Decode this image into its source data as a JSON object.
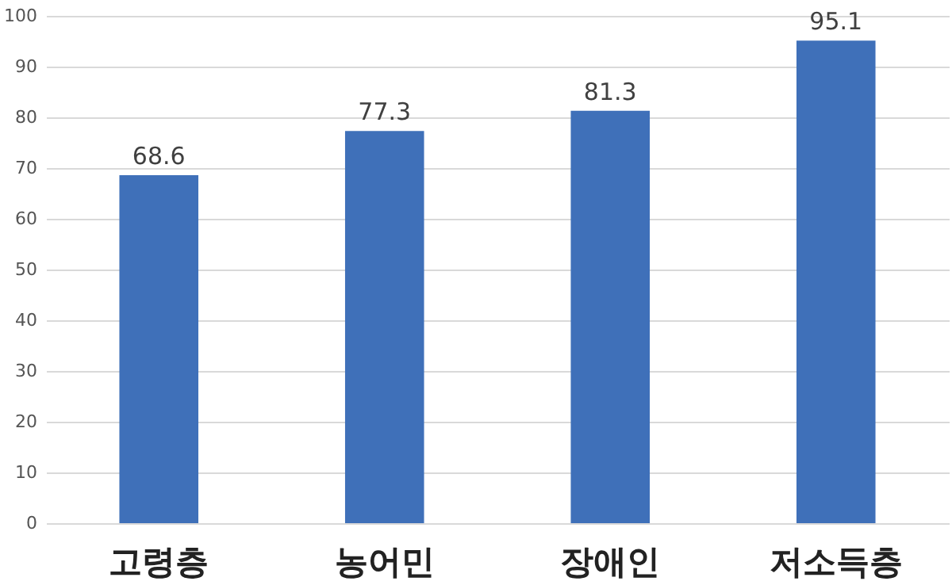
{
  "chart_data": {
    "type": "bar",
    "categories": [
      "고령층",
      "농어민",
      "장애인",
      "저소득층"
    ],
    "values": [
      68.6,
      77.3,
      81.3,
      95.1
    ],
    "color": "#3f70b9",
    "ylim": [
      0,
      100
    ],
    "yticks": [
      0,
      10,
      20,
      30,
      40,
      50,
      60,
      70,
      80,
      90,
      100
    ],
    "grid": "y",
    "data_labels": true
  }
}
